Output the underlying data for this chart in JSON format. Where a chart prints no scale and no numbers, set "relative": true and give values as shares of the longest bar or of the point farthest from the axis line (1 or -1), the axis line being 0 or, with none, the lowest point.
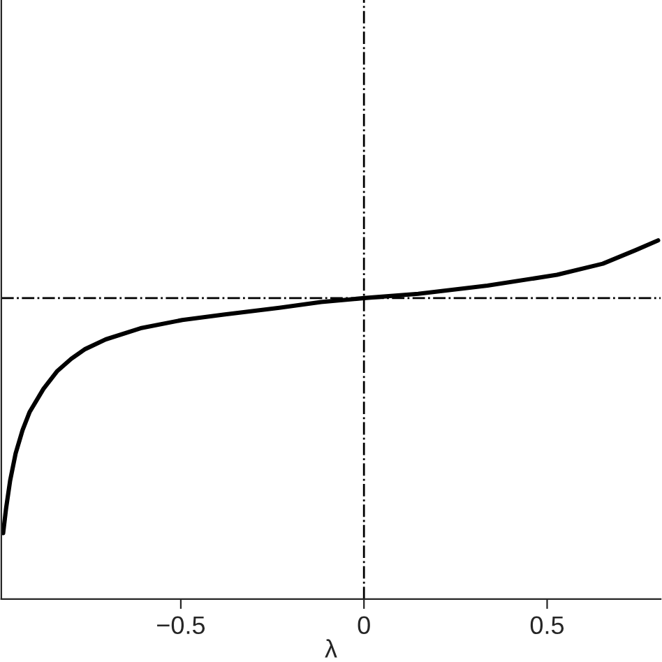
{
  "chart_data": {
    "type": "line",
    "xlabel": "λ",
    "relative": true,
    "tick_labels": "x",
    "xlim": [
      -0.99,
      0.81
    ],
    "xticks": [
      {
        "value": -0.5,
        "label": "−0.5"
      },
      0,
      0.5
    ],
    "grid": false,
    "marker": "none",
    "line_style": "solid",
    "ref_lines": [
      {
        "axis": "x",
        "value": 0,
        "color": "#000000",
        "line_style": "dashdot"
      },
      {
        "axis": "y",
        "value": 0.839,
        "color": "#000000",
        "line_style": "dashdot"
      }
    ],
    "series": [
      {
        "color": "#000000",
        "x": [
          -0.985,
          -0.977,
          -0.966,
          -0.951,
          -0.932,
          -0.913,
          -0.875,
          -0.837,
          -0.799,
          -0.761,
          -0.705,
          -0.61,
          -0.496,
          -0.383,
          -0.231,
          -0.117,
          0,
          0.148,
          0.337,
          0.527,
          0.652,
          0.742,
          0.803
        ],
        "values": [
          0.184,
          0.253,
          0.33,
          0.406,
          0.471,
          0.521,
          0.586,
          0.636,
          0.67,
          0.697,
          0.724,
          0.755,
          0.778,
          0.793,
          0.812,
          0.828,
          0.839,
          0.851,
          0.874,
          0.904,
          0.935,
          0.973,
          1.0
        ]
      }
    ]
  }
}
